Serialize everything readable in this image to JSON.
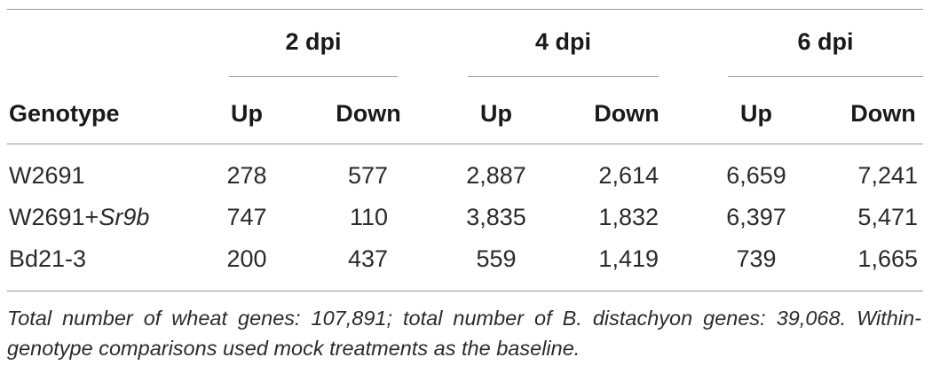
{
  "table": {
    "groups": [
      {
        "label": "2 dpi"
      },
      {
        "label": "4 dpi"
      },
      {
        "label": "6 dpi"
      }
    ],
    "columns": {
      "genotype": "Genotype",
      "up": "Up",
      "down": "Down"
    },
    "rows": [
      {
        "genotype": "W2691",
        "genotype_suffix": "",
        "values": [
          "278",
          "577",
          "2,887",
          "2,614",
          "6,659",
          "7,241"
        ]
      },
      {
        "genotype": "W2691+",
        "genotype_suffix": "Sr9b",
        "values": [
          "747",
          "110",
          "3,835",
          "1,832",
          "6,397",
          "5,471"
        ]
      },
      {
        "genotype": "Bd21-3",
        "genotype_suffix": "",
        "values": [
          "200",
          "437",
          "559",
          "1,419",
          "739",
          "1,665"
        ]
      }
    ]
  },
  "footnote": "Total number of wheat genes: 107,891; total number of B. distachyon genes: 39,068. Within-genotype comparisons used mock treatments as the baseline."
}
